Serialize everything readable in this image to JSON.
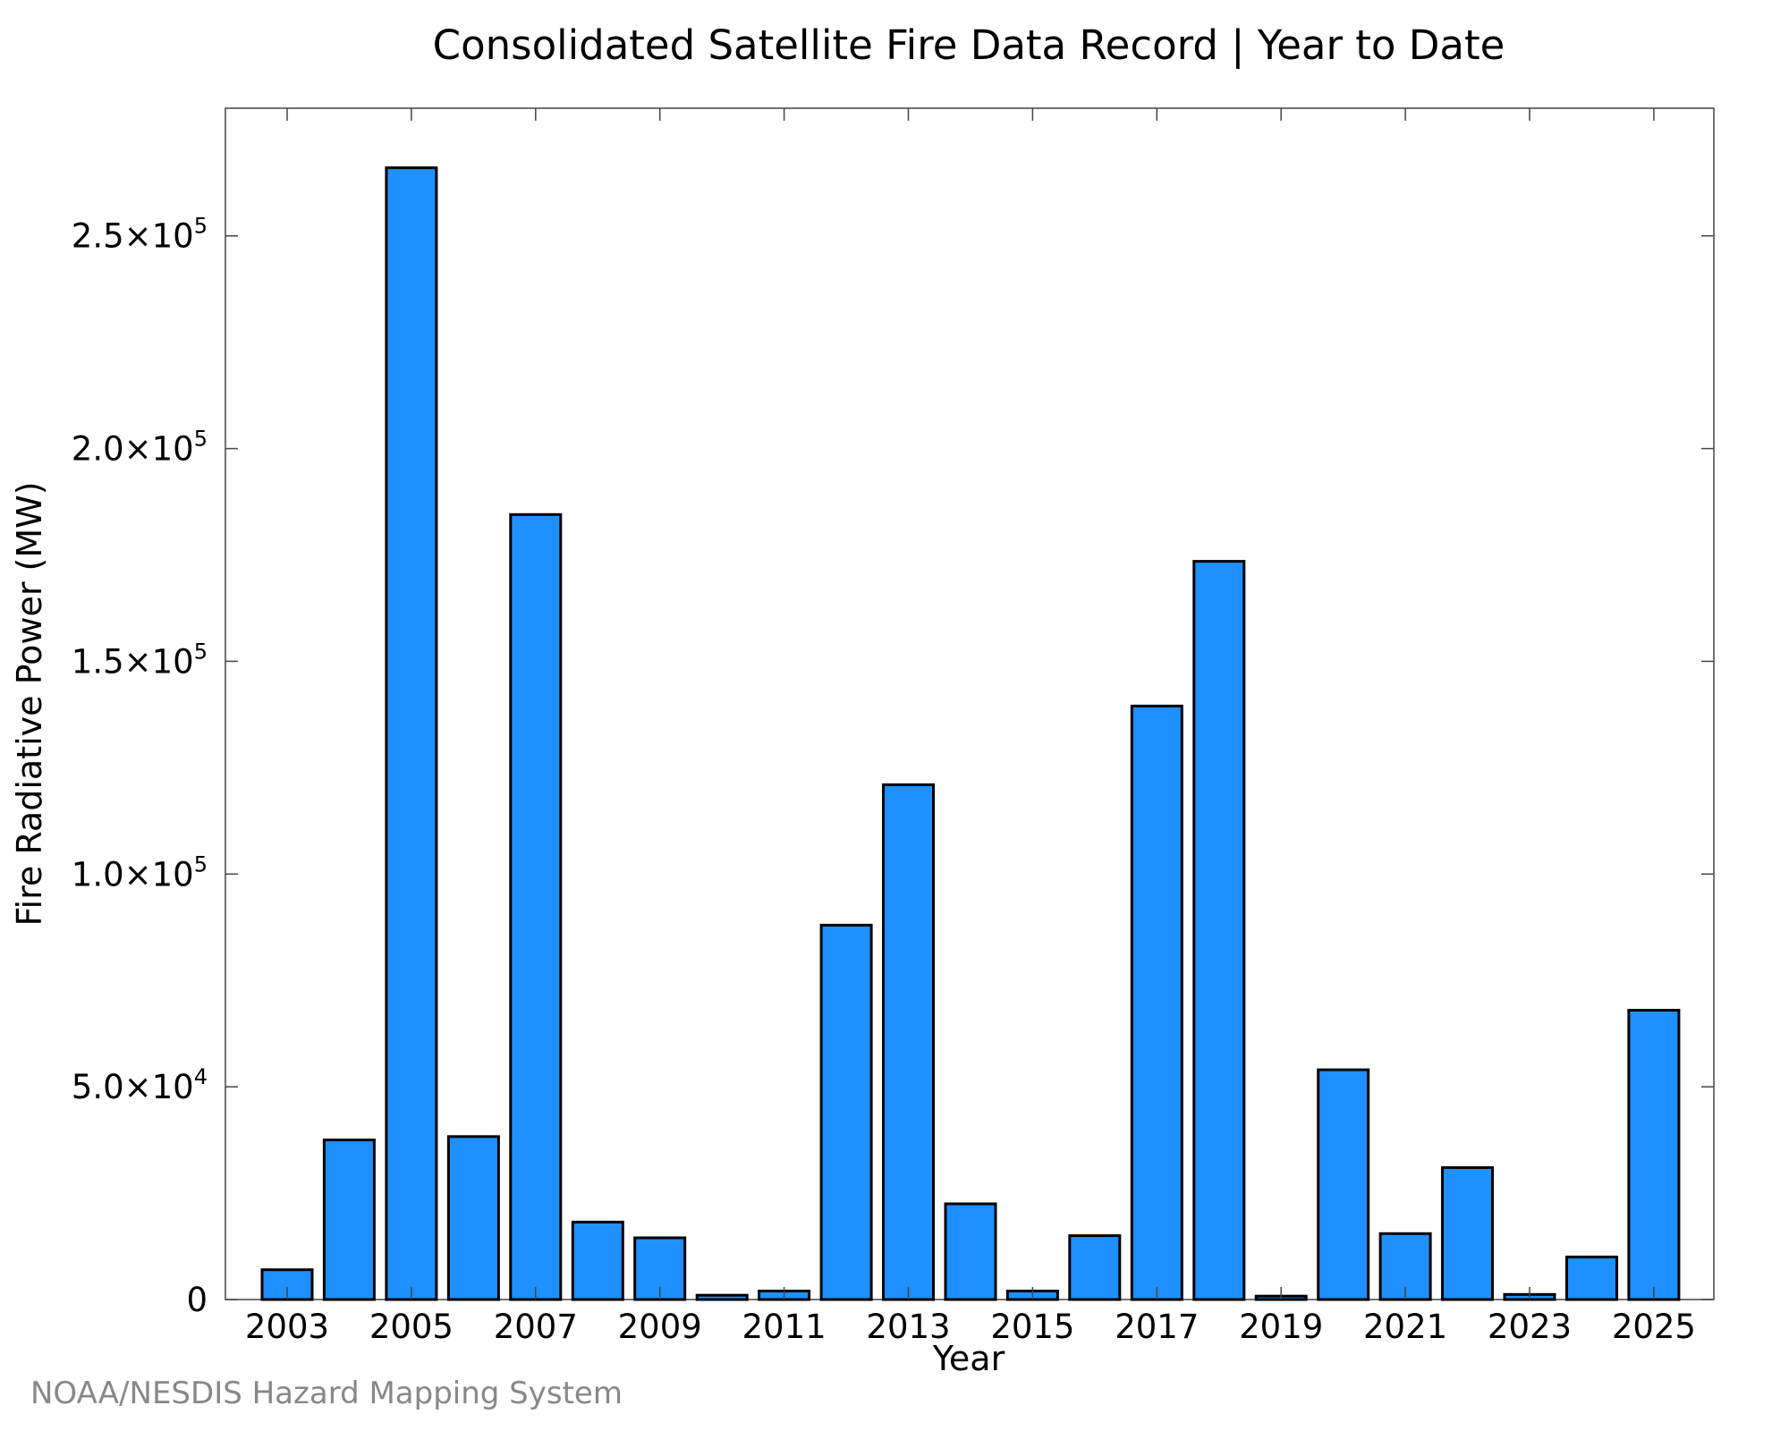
{
  "source_note": "NOAA/NESDIS Hazard Mapping System",
  "chart_data": {
    "type": "bar",
    "title": "Consolidated Satellite Fire Data Record | Year to Date",
    "xlabel": "Year",
    "ylabel": "Fire Radiative Power (MW)",
    "bar_color": "#1E90FF",
    "bar_edge_color": "#000000",
    "categories": [
      "2003",
      "2004",
      "2005",
      "2006",
      "2007",
      "2008",
      "2009",
      "2010",
      "2011",
      "2012",
      "2013",
      "2014",
      "2015",
      "2016",
      "2017",
      "2018",
      "2019",
      "2020",
      "2021",
      "2022",
      "2023",
      "2024",
      "2025"
    ],
    "values": [
      7000,
      37500,
      266000,
      38300,
      184500,
      18200,
      14500,
      1000,
      2000,
      88000,
      121000,
      22500,
      2000,
      15000,
      139500,
      173500,
      800,
      54000,
      15500,
      31000,
      1200,
      10000,
      68000
    ],
    "xtick_labels": [
      "2003",
      "2005",
      "2007",
      "2009",
      "2011",
      "2013",
      "2015",
      "2017",
      "2019",
      "2021",
      "2023",
      "2025"
    ],
    "ylim": [
      0,
      280000
    ],
    "yticks": [
      {
        "value": 0,
        "mantissa": "0",
        "exp": ""
      },
      {
        "value": 50000,
        "mantissa": "5.0×10",
        "exp": "4"
      },
      {
        "value": 100000,
        "mantissa": "1.0×10",
        "exp": "5"
      },
      {
        "value": 150000,
        "mantissa": "1.5×10",
        "exp": "5"
      },
      {
        "value": 200000,
        "mantissa": "2.0×10",
        "exp": "5"
      },
      {
        "value": 250000,
        "mantissa": "2.5×10",
        "exp": "5"
      }
    ],
    "grid": false
  }
}
